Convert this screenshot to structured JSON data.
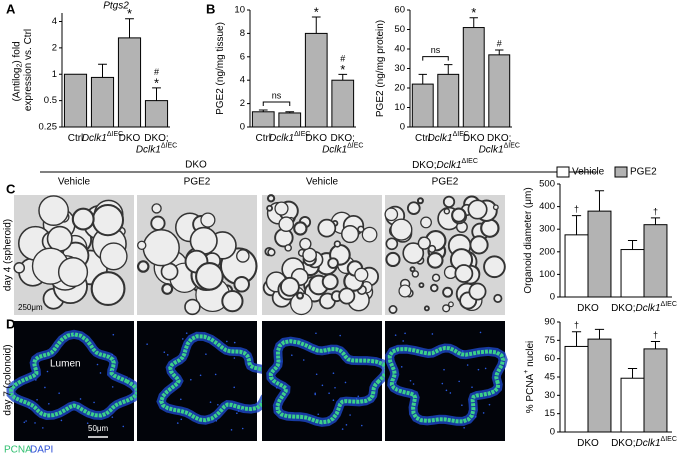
{
  "panel_labels": [
    "A",
    "B",
    "C",
    "D"
  ],
  "images": {
    "col_groups": [
      "DKO",
      "DKO;Dclk1ΔIEC"
    ],
    "columns": [
      "Vehicle",
      "PGE2",
      "Vehicle",
      "PGE2"
    ],
    "rows": [
      "day 4 (spheroid)",
      "day 7 (colonoid)"
    ],
    "scale_bars": [
      "250μm",
      "50μm"
    ],
    "stain": [
      "PCNA",
      "DAPI"
    ],
    "lumen": "Lumen"
  },
  "chart_data": [
    {
      "type": "bar",
      "title": "Ptgs2",
      "y_label": "(Antilog2) fold expression vs. Ctrl",
      "categories": [
        "Ctrl",
        "Dclk1ΔIEC",
        "DKO",
        "DKO;Dclk1ΔIEC"
      ],
      "values": [
        1,
        0.92,
        2.6,
        0.5
      ],
      "errors": [
        null,
        0.38,
        1.7,
        0.2
      ],
      "color": "#b3b3b3",
      "annotations": [
        null,
        null,
        [
          "*"
        ],
        [
          "#",
          "*"
        ]
      ],
      "log_scale": true,
      "ylim": [
        0.25,
        5
      ],
      "yticks": [
        0.25,
        0.5,
        1,
        2,
        4
      ]
    },
    {
      "type": "bar",
      "y_label": "PGE2 (ng/mg tissue)",
      "categories": [
        "Ctrl",
        "Dclk1ΔIEC",
        "DKO",
        "DKO;Dclk1ΔIEC"
      ],
      "values": [
        1.3,
        1.2,
        8.0,
        4.0
      ],
      "errors": [
        0.15,
        0.1,
        1.4,
        0.5
      ],
      "color": "#b3b3b3",
      "annotations": [
        null,
        null,
        [
          "*"
        ],
        [
          "#",
          "*"
        ]
      ],
      "bracket_label": "ns",
      "ylim": [
        0,
        10
      ],
      "yticks": [
        0,
        2,
        4,
        6,
        8,
        10
      ]
    },
    {
      "type": "bar",
      "y_label": "PGE2 (ng/mg protein)",
      "categories": [
        "Ctrl",
        "Dclk1ΔIEC",
        "DKO",
        "DKO;Dclk1ΔIEC"
      ],
      "values": [
        22,
        27,
        51,
        37
      ],
      "errors": [
        5,
        5,
        5,
        2.5
      ],
      "color": "#b3b3b3",
      "annotations": [
        null,
        null,
        [
          "*"
        ],
        [
          "#"
        ]
      ],
      "bracket_label": "ns",
      "ylim": [
        0,
        60
      ],
      "yticks": [
        0,
        10,
        20,
        30,
        40,
        50,
        60
      ]
    },
    {
      "type": "bar",
      "y_label": "Organoid diameter (μm)",
      "categories": [
        "DKO",
        "DKO;Dclk1ΔIEC"
      ],
      "series": [
        {
          "name": "Vehicle",
          "color": "#ffffff",
          "values": [
            275,
            210
          ],
          "errors": [
            85,
            40
          ],
          "annotations": [
            [
              "†"
            ],
            null
          ]
        },
        {
          "name": "PGE2",
          "color": "#b3b3b3",
          "values": [
            380,
            320
          ],
          "errors": [
            90,
            30
          ],
          "annotations": [
            null,
            [
              "†"
            ]
          ]
        }
      ],
      "legend": "top",
      "ylim": [
        0,
        500
      ],
      "yticks": [
        0,
        100,
        200,
        300,
        400,
        500
      ]
    },
    {
      "type": "bar",
      "y_label": "% PCNA+ nuclei",
      "categories": [
        "DKO",
        "DKO;Dclk1ΔIEC"
      ],
      "series": [
        {
          "color": "#ffffff",
          "values": [
            70,
            44
          ],
          "errors": [
            12,
            8
          ],
          "annotations": [
            [
              "†"
            ],
            null
          ]
        },
        {
          "color": "#b3b3b3",
          "values": [
            76,
            68
          ],
          "errors": [
            8,
            6
          ],
          "annotations": [
            null,
            [
              "†"
            ]
          ]
        }
      ],
      "ylim": [
        0,
        90
      ],
      "yticks": [
        0,
        15,
        30,
        45,
        60,
        75,
        90
      ]
    }
  ]
}
